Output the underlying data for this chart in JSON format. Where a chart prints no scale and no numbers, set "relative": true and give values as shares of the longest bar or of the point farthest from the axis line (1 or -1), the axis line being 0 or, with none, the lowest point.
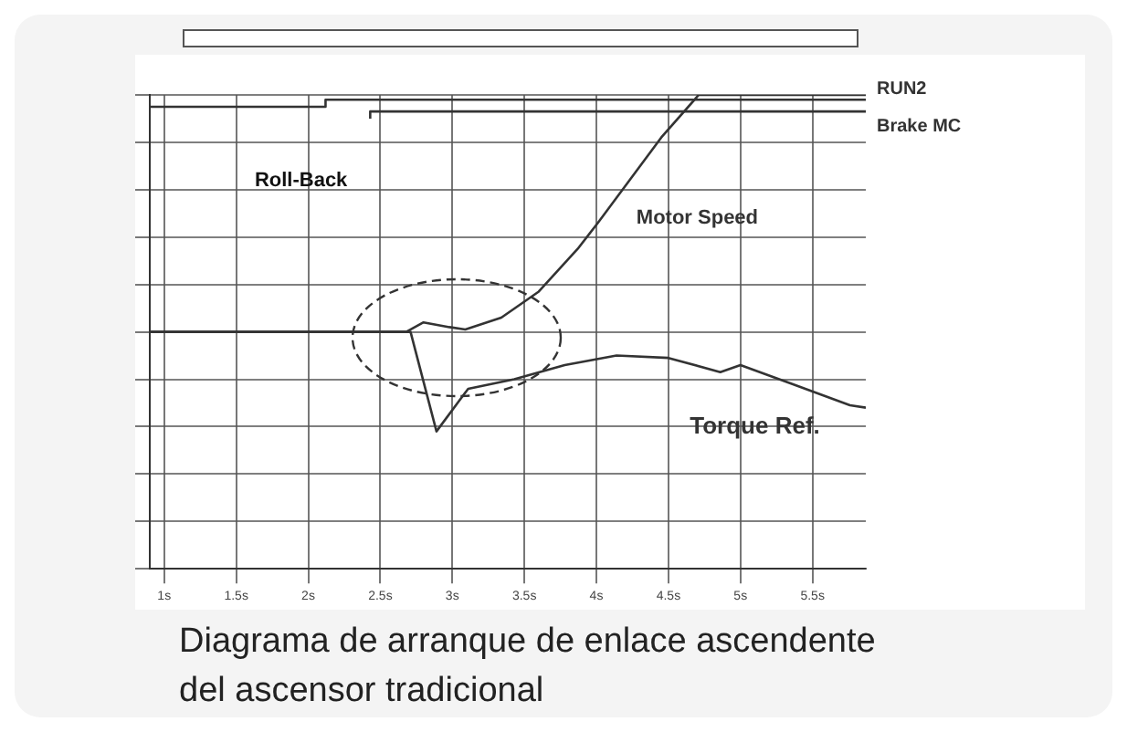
{
  "chart_data": {
    "type": "line",
    "title": "Diagrama de arranque de enlace ascendente del ascensor tradicional",
    "relative": true,
    "xlim": [
      0.9,
      5.87
    ],
    "xticks": [
      {
        "value": 1,
        "label": "1s"
      },
      {
        "value": 1.5,
        "label": "1.5s"
      },
      {
        "value": 2,
        "label": "2s"
      },
      {
        "value": 2.5,
        "label": "2.5s"
      },
      {
        "value": 3,
        "label": "3s"
      },
      {
        "value": 3.5,
        "label": "3.5s"
      },
      {
        "value": 4,
        "label": "4s"
      },
      {
        "value": 4.5,
        "label": "4.5s"
      },
      {
        "value": 5,
        "label": "5s"
      },
      {
        "value": 5.5,
        "label": "5.5s"
      }
    ],
    "annotations": [
      "Roll-Back"
    ],
    "grid": true,
    "legend": false,
    "marker": "none",
    "line_style": "solid",
    "series": [
      {
        "name": "Motor Speed",
        "color": "#333333",
        "x": [
          0.9,
          2.68,
          2.8,
          2.98,
          3.09,
          3.34,
          3.6,
          3.87,
          4.01,
          4.45,
          4.71,
          5.87
        ],
        "values": [
          0.5,
          0.5,
          0.52,
          0.51,
          0.505,
          0.53,
          0.585,
          0.675,
          0.73,
          0.91,
          1.0,
          1.0
        ]
      },
      {
        "name": "Torque Ref.",
        "color": "#333333",
        "x": [
          0.9,
          2.71,
          2.89,
          3.11,
          3.43,
          3.78,
          4.14,
          4.5,
          4.86,
          5.0,
          5.36,
          5.76,
          5.87
        ],
        "values": [
          0.5,
          0.5,
          0.29,
          0.38,
          0.4,
          0.43,
          0.45,
          0.445,
          0.415,
          0.43,
          0.39,
          0.345,
          0.34
        ]
      },
      {
        "name": "RUN2",
        "color": "#333333",
        "x": [
          0.9,
          2.12,
          2.12,
          5.87
        ],
        "values": [
          0.975,
          0.975,
          0.99,
          0.99
        ]
      },
      {
        "name": "Brake MC",
        "color": "#333333",
        "x": [
          2.43,
          2.43,
          5.87
        ],
        "values": [
          0.95,
          0.965,
          0.965
        ]
      }
    ]
  }
}
